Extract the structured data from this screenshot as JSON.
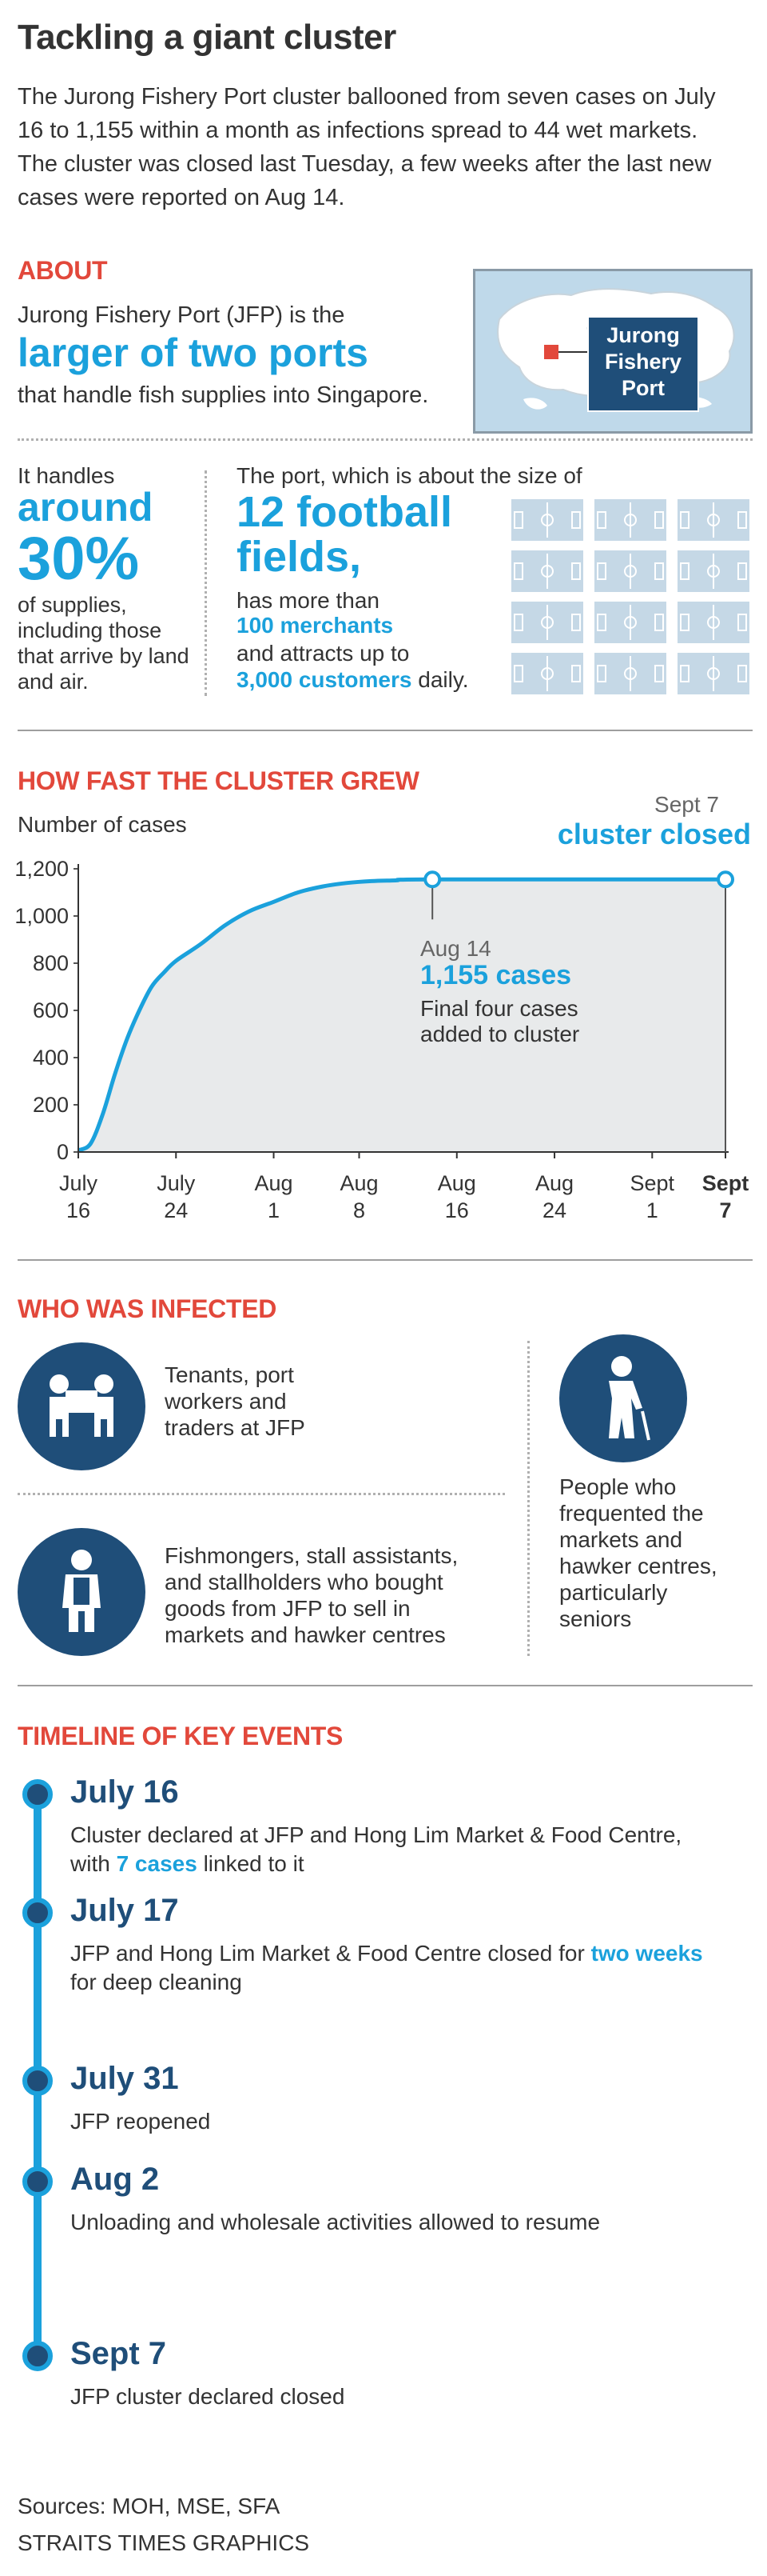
{
  "header": {
    "title": "Tackling a giant cluster",
    "intro": "The Jurong Fishery Port cluster ballooned from seven cases on July 16 to 1,155 within a month as infections spread to 44 wet markets. The cluster was closed last Tuesday, a few weeks after the last new cases were reported on Aug 14."
  },
  "about": {
    "heading": "ABOUT",
    "line1": "Jurong Fishery Port (JFP) is the",
    "highlight": "larger of two ports",
    "line2": "that handle fish supplies into Singapore.",
    "map_label": "Jurong\nFishery\nPort",
    "map_label_lines": [
      "Jurong",
      "Fishery",
      "Port"
    ],
    "handles_pre": "It handles",
    "handles_big1": "around",
    "handles_big2": "30%",
    "handles_post": "of supplies, including those that arrive by land and air.",
    "size_pre": "The port, which is about the size of",
    "size_big1": "12 football",
    "size_big2": "fields,",
    "merchants_pre": "has more than",
    "merchants_hl": "100 merchants",
    "customers_pre": "and attracts up to",
    "customers_hl": "3,000 customers",
    "customers_post": "daily."
  },
  "growth": {
    "heading": "HOW FAST THE CLUSTER GREW",
    "ylabel": "Number of cases",
    "closed_date": "Sept 7",
    "closed_label": "cluster closed",
    "ann_date": "Aug 14",
    "ann_cases": "1,155 cases",
    "ann_note1": "Final four cases",
    "ann_note2": "added to cluster"
  },
  "chart_data": {
    "type": "area",
    "xlabel": "",
    "ylabel": "Number of cases",
    "ylim": [
      0,
      1200
    ],
    "yticks": [
      "1,200",
      "1,000",
      "800",
      "600",
      "400",
      "200",
      "0"
    ],
    "xticks": [
      {
        "top": "July",
        "bottom": "16",
        "bold": false
      },
      {
        "top": "July",
        "bottom": "24",
        "bold": false
      },
      {
        "top": "Aug",
        "bottom": "1",
        "bold": false
      },
      {
        "top": "Aug",
        "bottom": "8",
        "bold": false
      },
      {
        "top": "Aug",
        "bottom": "16",
        "bold": false
      },
      {
        "top": "Aug",
        "bottom": "24",
        "bold": false
      },
      {
        "top": "Sept",
        "bottom": "1",
        "bold": false
      },
      {
        "top": "Sept",
        "bottom": "7",
        "bold": true
      }
    ],
    "series": [
      {
        "name": "",
        "x": [
          "Jul 16",
          "Jul 17",
          "Jul 18",
          "Jul 19",
          "Jul 20",
          "Jul 21",
          "Jul 22",
          "Jul 23",
          "Jul 24",
          "Jul 26",
          "Jul 28",
          "Jul 30",
          "Aug 1",
          "Aug 3",
          "Aug 5",
          "Aug 7",
          "Aug 9",
          "Aug 11",
          "Aug 14",
          "Sep 7"
        ],
        "day": [
          0,
          1,
          2,
          3,
          4,
          5,
          6,
          7,
          8,
          10,
          12,
          14,
          16,
          18,
          20,
          22,
          24,
          26,
          29,
          53
        ],
        "values": [
          7,
          35,
          160,
          330,
          480,
          600,
          700,
          760,
          810,
          880,
          960,
          1020,
          1060,
          1100,
          1125,
          1140,
          1148,
          1151,
          1155,
          1155
        ]
      }
    ],
    "grid": false,
    "legend": "none"
  },
  "who": {
    "heading": "WHO WAS INFECTED",
    "group1": "Tenants, port workers and traders at JFP",
    "group2": "Fishmongers, stall assistants, and stallholders who bought goods from JFP to sell in markets and hawker centres",
    "group3": "People who frequented the markets and hawker centres, particularly seniors"
  },
  "timeline": {
    "heading": "TIMELINE OF KEY EVENTS",
    "events": [
      {
        "date": "July 16",
        "pre": "Cluster declared at JFP and Hong Lim Market & Food Centre, with ",
        "hl": "7 cases",
        "post": " linked to it"
      },
      {
        "date": "July 17",
        "pre": "JFP and Hong Lim Market & Food Centre closed for ",
        "hl": "two weeks",
        "post": " for deep cleaning"
      },
      {
        "date": "July 31",
        "pre": "JFP reopened",
        "hl": "",
        "post": ""
      },
      {
        "date": "Aug 2",
        "pre": "Unloading and wholesale activities allowed to resume",
        "hl": "",
        "post": ""
      },
      {
        "date": "Sept 7",
        "pre": "JFP cluster declared closed",
        "hl": "",
        "post": ""
      }
    ]
  },
  "footer": {
    "sources": "Sources: MOH, MSE, SFA",
    "credit": "STRAITS TIMES GRAPHICS"
  },
  "colors": {
    "accent": "#1ba1dc",
    "heading_red": "#e2483b",
    "navy": "#1f4e79",
    "area_fill": "#e8eaeb"
  }
}
